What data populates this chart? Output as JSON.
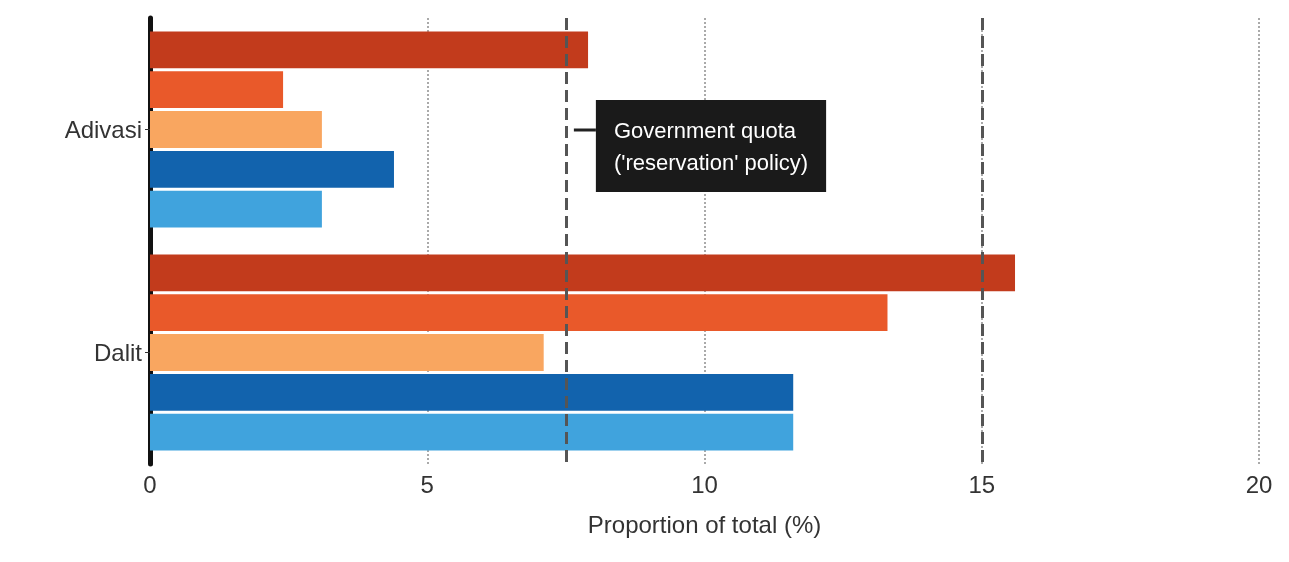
{
  "chart_data": {
    "type": "bar",
    "orientation": "horizontal",
    "xlabel": "Proportion of total (%)",
    "categories": [
      "Adivasi",
      "Dalit"
    ],
    "series": [
      {
        "color": "#c23b1c",
        "values": [
          7.9,
          15.6
        ]
      },
      {
        "color": "#e9592a",
        "values": [
          2.4,
          13.3
        ]
      },
      {
        "color": "#f9a660",
        "values": [
          3.1,
          7.1
        ]
      },
      {
        "color": "#1263ad",
        "values": [
          4.4,
          11.6
        ]
      },
      {
        "color": "#40a3dd",
        "values": [
          3.1,
          11.6
        ]
      }
    ],
    "xlim": [
      0,
      20
    ],
    "xticks": [
      0,
      5,
      10,
      15,
      20
    ],
    "grid": "x",
    "ref_lines": [
      {
        "axis": "x",
        "value": 7.5,
        "label": "Government quota\n('reservation' policy)",
        "line_style": "dashed",
        "color": "#555555"
      },
      {
        "axis": "x",
        "value": 15,
        "line_style": "dashed",
        "color": "#555555"
      }
    ]
  }
}
